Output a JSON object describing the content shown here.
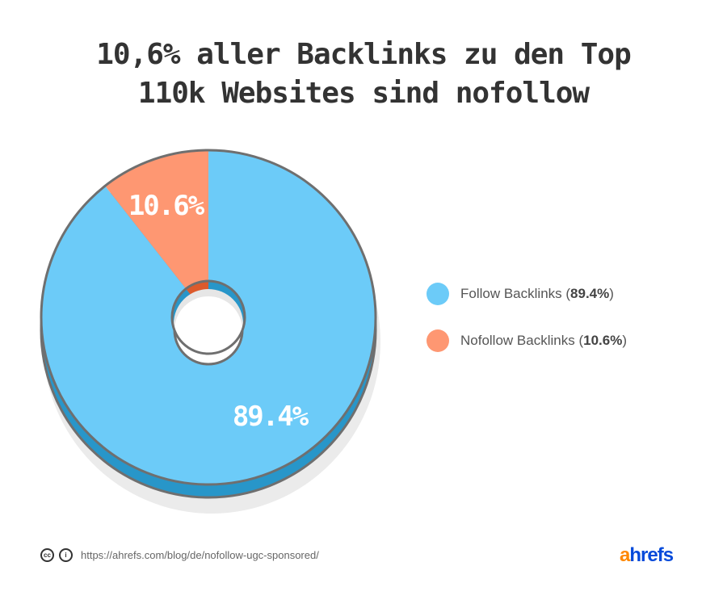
{
  "title_line1": "10,6% aller Backlinks zu den Top",
  "title_line2": "110k Websites sind nofollow",
  "chart_data": {
    "type": "pie",
    "style": "3d-donut",
    "categories": [
      "Follow Backlinks",
      "Nofollow Backlinks"
    ],
    "values": [
      89.4,
      10.6
    ],
    "data_labels": [
      "89.4%",
      "10.6%"
    ],
    "colors": [
      "#6ccbf8",
      "#fe9772"
    ],
    "side_colors": [
      "#2896c9",
      "#dc5a2c"
    ],
    "legend_placement": "right"
  },
  "legend": [
    {
      "label": "Follow Backlinks (",
      "value": "89.4%",
      "suffix": ")",
      "color": "#6ccbf8"
    },
    {
      "label": "Nofollow Backlinks (",
      "value": "10.6%",
      "suffix": ")",
      "color": "#fe9772"
    }
  ],
  "footer": {
    "url": "https://ahrefs.com/blog/de/nofollow-ugc-sponsored/",
    "cc_icon_text": "cc",
    "by_icon_text": "i"
  },
  "logo": {
    "first": "a",
    "rest": "hrefs",
    "first_color": "#ff8800",
    "rest_color": "#054ada"
  }
}
